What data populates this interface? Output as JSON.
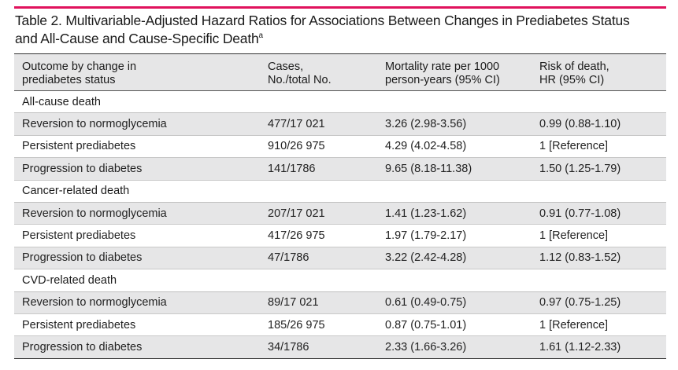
{
  "colors": {
    "accent_rule": "#e0125c",
    "shade": "#e6e6e7"
  },
  "caption": {
    "line1": "Table 2. Multivariable-Adjusted Hazard Ratios for Associations Between Changes in Prediabetes Status",
    "line2": "and All-Cause and Cause-Specific Death",
    "footnote_mark": "a"
  },
  "table": {
    "headers": [
      {
        "line1": "Outcome by change in",
        "line2": "prediabetes status"
      },
      {
        "line1": "Cases,",
        "line2": "No./total No."
      },
      {
        "line1": "Mortality rate per 1000",
        "line2": "person-years (95% CI)"
      },
      {
        "line1": "Risk of death,",
        "line2": "HR (95% CI)"
      }
    ],
    "sections": [
      {
        "title": "All-cause death",
        "rows": [
          {
            "outcome": "Reversion to normoglycemia",
            "cases": "477/17 021",
            "rate": "3.26 (2.98-3.56)",
            "hr": "0.99 (0.88-1.10)"
          },
          {
            "outcome": "Persistent prediabetes",
            "cases": "910/26 975",
            "rate": "4.29 (4.02-4.58)",
            "hr": "1 [Reference]"
          },
          {
            "outcome": "Progression to diabetes",
            "cases": "141/1786",
            "rate": "9.65 (8.18-11.38)",
            "hr": "1.50 (1.25-1.79)"
          }
        ]
      },
      {
        "title": "Cancer-related death",
        "rows": [
          {
            "outcome": "Reversion to normoglycemia",
            "cases": "207/17 021",
            "rate": "1.41 (1.23-1.62)",
            "hr": "0.91 (0.77-1.08)"
          },
          {
            "outcome": "Persistent prediabetes",
            "cases": "417/26 975",
            "rate": "1.97 (1.79-2.17)",
            "hr": "1 [Reference]"
          },
          {
            "outcome": "Progression to diabetes",
            "cases": "47/1786",
            "rate": "3.22 (2.42-4.28)",
            "hr": "1.12 (0.83-1.52)"
          }
        ]
      },
      {
        "title": "CVD-related death",
        "rows": [
          {
            "outcome": "Reversion to normoglycemia",
            "cases": "89/17 021",
            "rate": "0.61 (0.49-0.75)",
            "hr": "0.97 (0.75-1.25)"
          },
          {
            "outcome": "Persistent prediabetes",
            "cases": "185/26 975",
            "rate": "0.87 (0.75-1.01)",
            "hr": "1 [Reference]"
          },
          {
            "outcome": "Progression to diabetes",
            "cases": "34/1786",
            "rate": "2.33 (1.66-3.26)",
            "hr": "1.61 (1.12-2.33)"
          }
        ]
      }
    ]
  }
}
